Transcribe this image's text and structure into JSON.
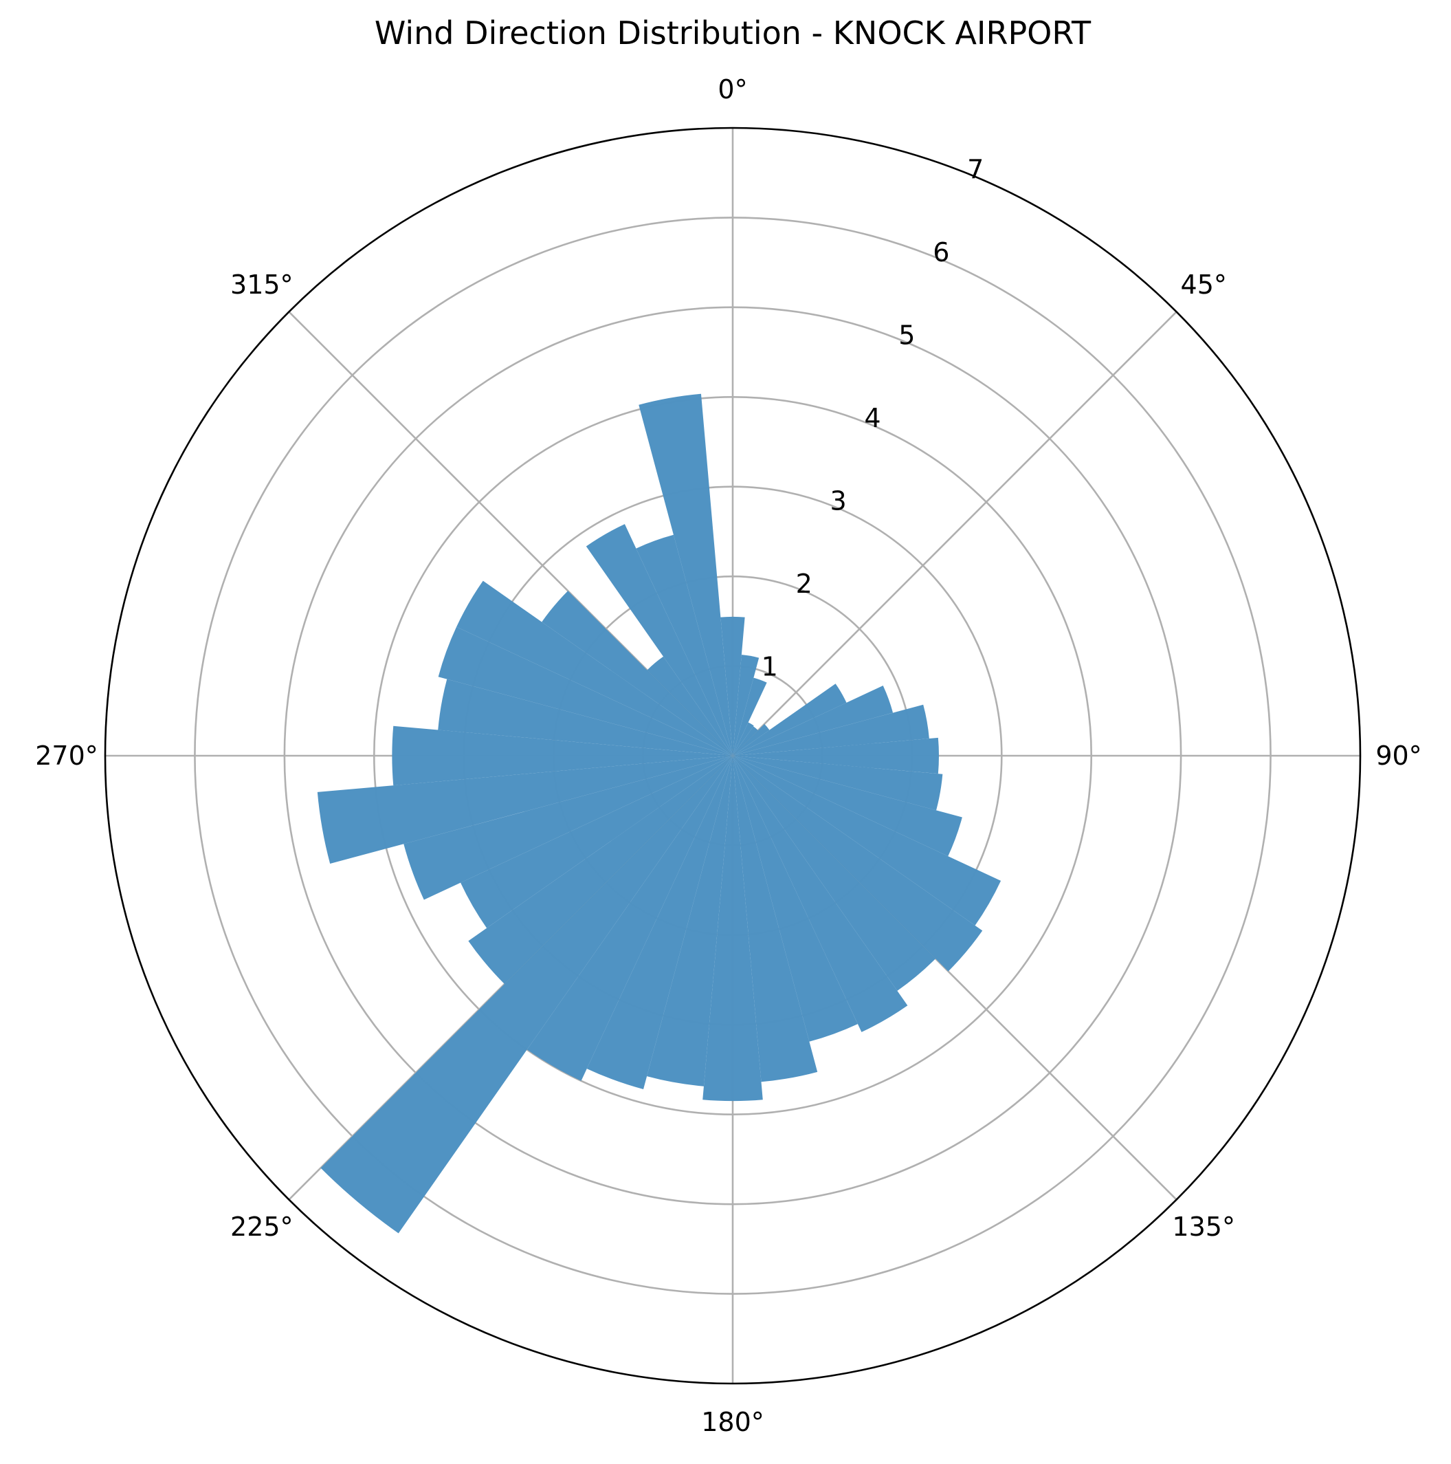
{
  "chart_data": {
    "type": "bar",
    "projection": "polar",
    "title": "Wind Direction Distribution - KNOCK AIRPORT",
    "theta_zero": "N",
    "theta_direction": "clockwise",
    "bin_width_deg": 10,
    "bar_color": "#4c91c2",
    "grid": true,
    "rlim": [
      0,
      7
    ],
    "r_ticks": [
      "1",
      "2",
      "3",
      "4",
      "5",
      "6",
      "7"
    ],
    "theta_tick_labels": [
      "0°",
      "45°",
      "90°",
      "135°",
      "180°",
      "225°",
      "270°",
      "315°"
    ],
    "directions_deg": [
      0,
      10,
      20,
      30,
      40,
      50,
      60,
      70,
      80,
      90,
      100,
      110,
      120,
      130,
      140,
      150,
      160,
      170,
      180,
      190,
      200,
      210,
      220,
      230,
      240,
      250,
      260,
      270,
      280,
      290,
      300,
      310,
      320,
      330,
      340,
      350
    ],
    "values": [
      1.55,
      1.13,
      0.9,
      0.41,
      0.4,
      0.5,
      1.4,
      1.85,
      2.2,
      2.3,
      2.35,
      2.65,
      3.3,
      3.4,
      3.2,
      3.4,
      3.3,
      3.65,
      3.85,
      3.7,
      3.85,
      4.0,
      6.5,
      3.6,
      3.35,
      3.8,
      4.65,
      3.8,
      3.3,
      3.4,
      3.4,
      2.6,
      1.35,
      2.85,
      2.55,
      4.05
    ]
  }
}
